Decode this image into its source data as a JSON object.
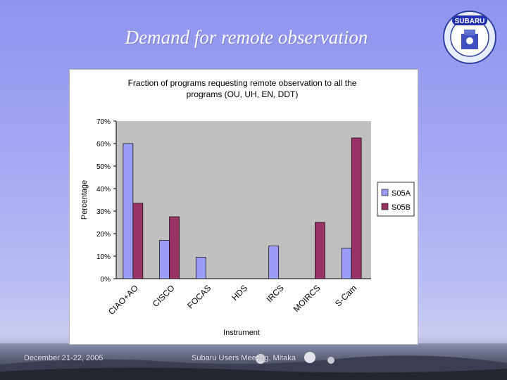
{
  "slide": {
    "title": "Demand for remote observation",
    "footer_left": "December 21-22, 2005",
    "footer_center": "Subaru Users Meeting, Mitaka",
    "logo_text": "SUBARU"
  },
  "colors": {
    "series1": "#9a9cf6",
    "series2": "#993366",
    "background_top": "#8f94ee",
    "bar_outline": "#000000"
  },
  "chart_data": {
    "type": "bar",
    "title_line1": "Fraction of programs requesting remote observation to all the",
    "title_line2": "programs (OU, UH, EN, DDT)",
    "xlabel": "Instrument",
    "ylabel": "Percentage",
    "ylim": [
      0,
      70
    ],
    "yticks": [
      "0%",
      "10%",
      "20%",
      "30%",
      "40%",
      "50%",
      "60%",
      "70%"
    ],
    "ytick_values": [
      0,
      10,
      20,
      30,
      40,
      50,
      60,
      70
    ],
    "categories": [
      "CIAO+AO",
      "CISCO",
      "FOCAS",
      "HDS",
      "IRCS",
      "MOIRCS",
      "S-Cam"
    ],
    "series": [
      {
        "name": "S05A",
        "values": [
          60,
          17,
          9.5,
          0,
          14.5,
          0,
          13.5
        ]
      },
      {
        "name": "S05B",
        "values": [
          33.5,
          27.5,
          0,
          0,
          0,
          25,
          62.5
        ]
      }
    ],
    "legend_position": "right",
    "grid": false
  }
}
